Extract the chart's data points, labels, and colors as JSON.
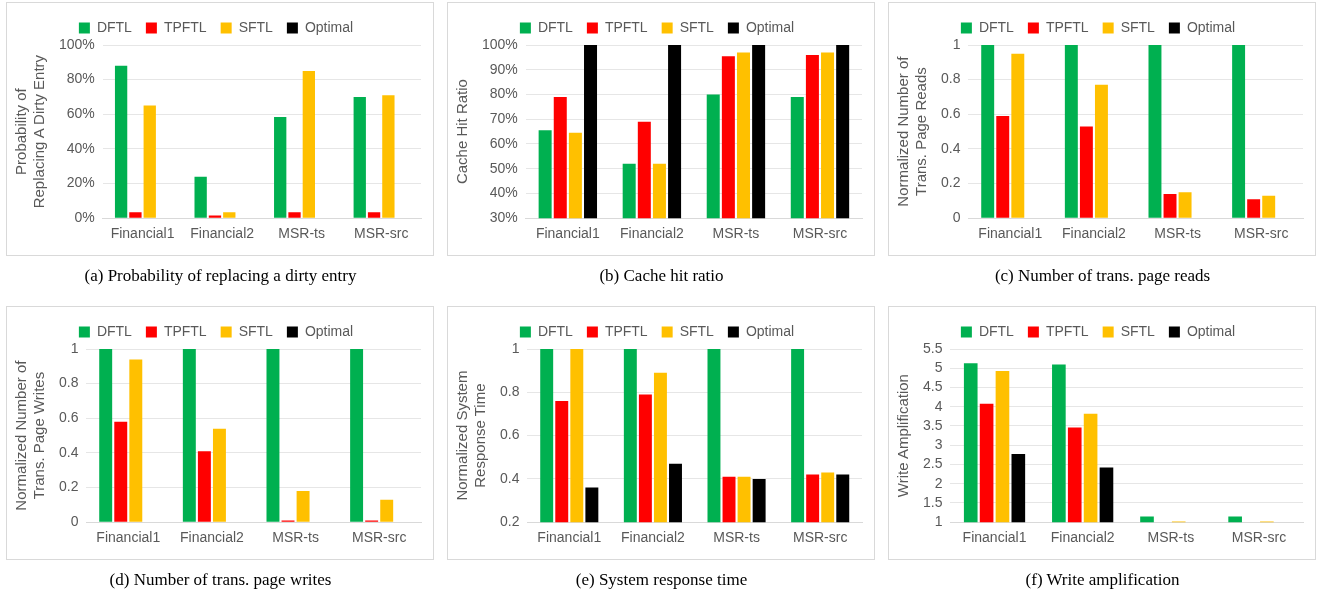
{
  "chart_data": [
    {
      "type": "bar",
      "title": "(a)  Probability of replacing a dirty entry",
      "ylabel": "Probability of Replacing A Dirty Entry",
      "categories": [
        "Financial1",
        "Financial2",
        "MSR-ts",
        "MSR-src"
      ],
      "series": [
        {
          "name": "DFTL",
          "color": "#00b050",
          "values": [
            88,
            24,
            58.5,
            70
          ]
        },
        {
          "name": "TPFTL",
          "color": "#ff0000",
          "values": [
            3.5,
            1.5,
            3.5,
            3.5
          ]
        },
        {
          "name": "SFTL",
          "color": "#ffc000",
          "values": [
            65,
            3.5,
            85,
            71
          ]
        },
        {
          "name": "Optimal",
          "color": "#000000",
          "values": [
            null,
            null,
            null,
            null
          ]
        }
      ],
      "ylim": [
        0,
        100
      ],
      "yticks": [
        {
          "value": 0,
          "label": "0%"
        },
        {
          "value": 20,
          "label": "20%"
        },
        {
          "value": 40,
          "label": "40%"
        },
        {
          "value": 60,
          "label": "60%"
        },
        {
          "value": 80,
          "label": "80%"
        },
        {
          "value": 100,
          "label": "100%"
        }
      ],
      "grid": "y",
      "legend": "top"
    },
    {
      "type": "bar",
      "title": "(b)  Cache hit ratio",
      "ylabel": "Cache Hit Ratio",
      "categories": [
        "Financial1",
        "Financial2",
        "MSR-ts",
        "MSR-src"
      ],
      "series": [
        {
          "name": "DFTL",
          "color": "#00b050",
          "values": [
            65.5,
            52,
            80,
            79
          ]
        },
        {
          "name": "TPFTL",
          "color": "#ff0000",
          "values": [
            79,
            69,
            95.5,
            96
          ]
        },
        {
          "name": "SFTL",
          "color": "#ffc000",
          "values": [
            64.5,
            52,
            97,
            97
          ]
        },
        {
          "name": "Optimal",
          "color": "#000000",
          "values": [
            100,
            100,
            100,
            100
          ]
        }
      ],
      "ylim": [
        30,
        100
      ],
      "yticks": [
        {
          "value": 30,
          "label": "30%"
        },
        {
          "value": 40,
          "label": "40%"
        },
        {
          "value": 50,
          "label": "50%"
        },
        {
          "value": 60,
          "label": "60%"
        },
        {
          "value": 70,
          "label": "70%"
        },
        {
          "value": 80,
          "label": "80%"
        },
        {
          "value": 90,
          "label": "90%"
        },
        {
          "value": 100,
          "label": "100%"
        }
      ],
      "grid": "y",
      "legend": "top"
    },
    {
      "type": "bar",
      "title": "(c)  Number of trans. page reads",
      "ylabel": "Normalized Number of Trans. Page Reads",
      "categories": [
        "Financial1",
        "Financial2",
        "MSR-ts",
        "MSR-src"
      ],
      "series": [
        {
          "name": "DFTL",
          "color": "#00b050",
          "values": [
            1,
            1,
            1,
            1
          ]
        },
        {
          "name": "TPFTL",
          "color": "#ff0000",
          "values": [
            0.59,
            0.53,
            0.14,
            0.11
          ]
        },
        {
          "name": "SFTL",
          "color": "#ffc000",
          "values": [
            0.95,
            0.77,
            0.15,
            0.13
          ]
        },
        {
          "name": "Optimal",
          "color": "#000000",
          "values": [
            null,
            null,
            null,
            null
          ]
        }
      ],
      "ylim": [
        0,
        1
      ],
      "yticks": [
        0,
        0.2,
        0.4,
        0.6,
        0.8,
        1
      ],
      "grid": "y",
      "legend": "top"
    },
    {
      "type": "bar",
      "title": "(d)  Number of trans. page writes",
      "ylabel": "Normalized Number of Trans. Page Writes",
      "categories": [
        "Financial1",
        "Financial2",
        "MSR-ts",
        "MSR-src"
      ],
      "series": [
        {
          "name": "DFTL",
          "color": "#00b050",
          "values": [
            1,
            1,
            1,
            1
          ]
        },
        {
          "name": "TPFTL",
          "color": "#ff0000",
          "values": [
            0.58,
            0.41,
            0.01,
            0.01
          ]
        },
        {
          "name": "SFTL",
          "color": "#ffc000",
          "values": [
            0.94,
            0.54,
            0.18,
            0.13
          ]
        },
        {
          "name": "Optimal",
          "color": "#000000",
          "values": [
            null,
            null,
            null,
            null
          ]
        }
      ],
      "ylim": [
        0,
        1
      ],
      "yticks": [
        0,
        0.2,
        0.4,
        0.6,
        0.8,
        1
      ],
      "grid": "y",
      "legend": "top"
    },
    {
      "type": "bar",
      "title": "(e)  System response time",
      "ylabel": "Normalized System Response Time",
      "categories": [
        "Financial1",
        "Financial2",
        "MSR-ts",
        "MSR-src"
      ],
      "series": [
        {
          "name": "DFTL",
          "color": "#00b050",
          "values": [
            1,
            1,
            1,
            1
          ]
        },
        {
          "name": "TPFTL",
          "color": "#ff0000",
          "values": [
            0.76,
            0.79,
            0.41,
            0.42
          ]
        },
        {
          "name": "SFTL",
          "color": "#ffc000",
          "values": [
            1,
            0.89,
            0.41,
            0.43
          ]
        },
        {
          "name": "Optimal",
          "color": "#000000",
          "values": [
            0.36,
            0.47,
            0.4,
            0.42
          ]
        }
      ],
      "ylim": [
        0.2,
        1
      ],
      "yticks": [
        0.2,
        0.4,
        0.6,
        0.8,
        1
      ],
      "grid": "y",
      "legend": "top"
    },
    {
      "type": "bar",
      "title": "(f)  Write amplification",
      "ylabel": "Write Amplification",
      "categories": [
        "Financial1",
        "Financial2",
        "MSR-ts",
        "MSR-src"
      ],
      "series": [
        {
          "name": "DFTL",
          "color": "#00b050",
          "values": [
            5.13,
            5.1,
            1.15,
            1.15
          ]
        },
        {
          "name": "TPFTL",
          "color": "#ff0000",
          "values": [
            4.08,
            3.46,
            null,
            null
          ]
        },
        {
          "name": "SFTL",
          "color": "#ffc000",
          "values": [
            4.93,
            3.82,
            1.02,
            1.02
          ]
        },
        {
          "name": "Optimal",
          "color": "#000000",
          "values": [
            2.77,
            2.42,
            null,
            null
          ]
        }
      ],
      "ylim": [
        1,
        5.5
      ],
      "yticks": [
        1,
        1.5,
        2,
        2.5,
        3,
        3.5,
        4,
        4.5,
        5,
        5.5
      ],
      "grid": "y",
      "legend": "top"
    }
  ]
}
